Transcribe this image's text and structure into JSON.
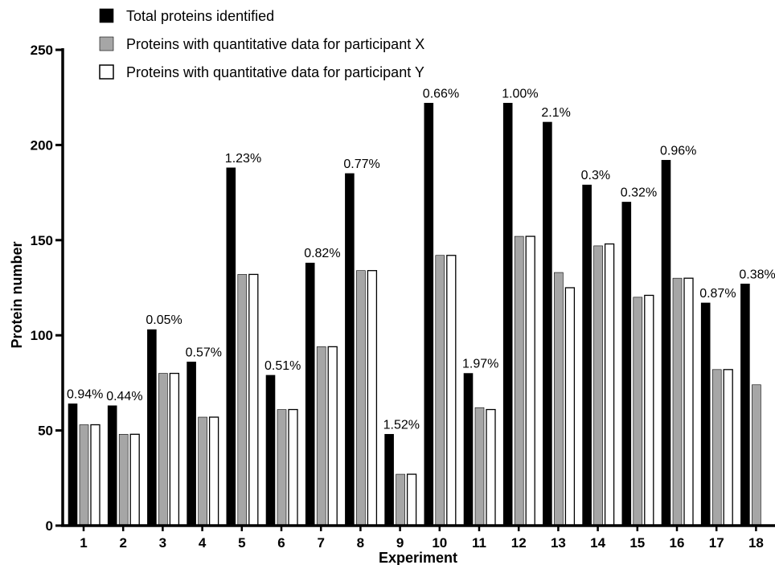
{
  "chart_data": {
    "type": "bar",
    "title": "",
    "xlabel": "Experiment",
    "ylabel": "Protein number",
    "ylim": [
      0,
      250
    ],
    "yticks": [
      "0",
      "50",
      "100",
      "150",
      "200",
      "250"
    ],
    "categories": [
      "1",
      "2",
      "3",
      "4",
      "5",
      "6",
      "7",
      "8",
      "9",
      "10",
      "11",
      "12",
      "13",
      "14",
      "15",
      "16",
      "17",
      "18"
    ],
    "series": [
      {
        "name": "Total proteins identified",
        "color": "#000000",
        "values": [
          64,
          63,
          103,
          86,
          188,
          79,
          138,
          185,
          48,
          222,
          80,
          222,
          212,
          179,
          170,
          192,
          117,
          127
        ]
      },
      {
        "name": "Proteins with quantitative data for participant X",
        "color": "#a6a6a6",
        "values": [
          53,
          48,
          80,
          57,
          132,
          61,
          94,
          134,
          27,
          142,
          62,
          152,
          133,
          147,
          120,
          130,
          82,
          74
        ]
      },
      {
        "name": "Proteins with quantitative data for participant Y",
        "color": "#ffffff",
        "values": [
          53,
          48,
          80,
          57,
          132,
          61,
          94,
          134,
          27,
          142,
          61,
          152,
          125,
          148,
          121,
          130,
          82,
          0
        ]
      }
    ],
    "data_labels": [
      "0.94%",
      "0.44%",
      "0.05%",
      "0.57%",
      "1.23%",
      "0.51%",
      "0.82%",
      "0.77%",
      "1.52%",
      "0.66%",
      "1.97%",
      "1.00%",
      "2.1%",
      "0.3%",
      "0.32%",
      "0.96%",
      "0.87%",
      "0.38%"
    ],
    "legend_position": "top-left",
    "grid": false
  }
}
